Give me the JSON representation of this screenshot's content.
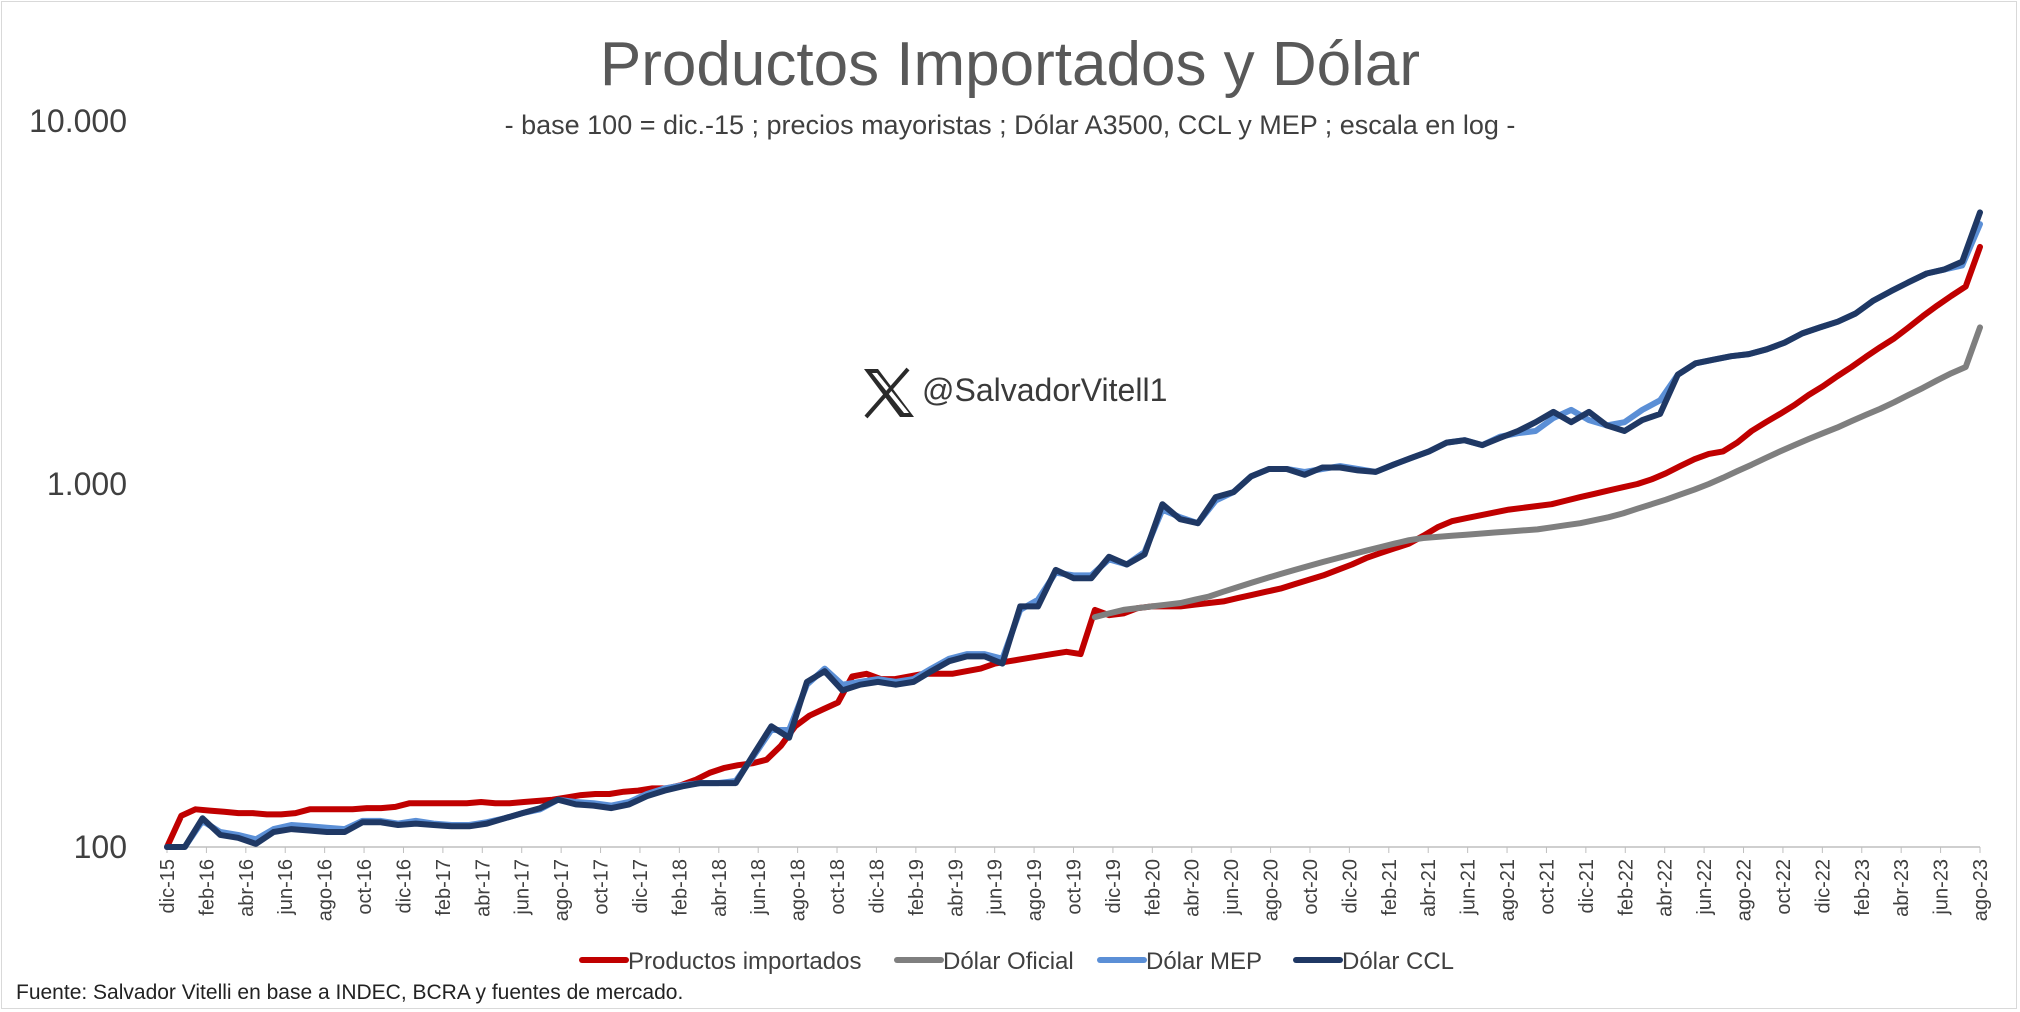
{
  "chart_data": {
    "type": "line",
    "title": "Productos Importados y Dólar",
    "subtitle": "- base 100 = dic.-15 ; precios mayoristas ; Dólar A3500, CCL y MEP ; escala en log -",
    "y_scale": "log",
    "ylim": [
      100,
      10000
    ],
    "yticks": [
      {
        "value": 100,
        "label": "100"
      },
      {
        "value": 1000,
        "label": "1.000"
      },
      {
        "value": 10000,
        "label": "10.000"
      }
    ],
    "x_ticks": [
      "dic-15",
      "feb-16",
      "abr-16",
      "jun-16",
      "ago-16",
      "oct-16",
      "dic-16",
      "feb-17",
      "abr-17",
      "jun-17",
      "ago-17",
      "oct-17",
      "dic-17",
      "feb-18",
      "abr-18",
      "jun-18",
      "ago-18",
      "oct-18",
      "dic-18",
      "feb-19",
      "abr-19",
      "jun-19",
      "ago-19",
      "oct-19",
      "dic-19",
      "feb-20",
      "abr-20",
      "jun-20",
      "ago-20",
      "oct-20",
      "dic-20",
      "feb-21",
      "abr-21",
      "jun-21",
      "ago-21",
      "oct-21",
      "dic-21",
      "feb-22",
      "abr-22",
      "jun-22",
      "ago-22",
      "oct-22",
      "dic-22",
      "feb-23",
      "abr-23",
      "jun-23",
      "ago-23"
    ],
    "series": [
      {
        "name": "Productos importados",
        "color": "#c00000",
        "values": [
          100,
          122,
          127,
          126,
          125,
          124,
          124,
          123,
          123,
          124,
          127,
          127,
          127,
          127,
          128,
          128,
          129,
          132,
          132,
          132,
          132,
          132,
          133,
          132,
          132,
          133,
          134,
          135,
          137,
          139,
          140,
          140,
          142,
          143,
          145,
          145,
          148,
          153,
          160,
          165,
          168,
          170,
          174,
          190,
          215,
          230,
          240,
          250,
          295,
          300,
          290,
          290,
          295,
          300,
          300,
          300,
          305,
          310,
          320,
          325,
          330,
          335,
          340,
          345,
          340,
          450,
          435,
          440,
          455,
          460,
          460,
          460,
          465,
          470,
          475,
          485,
          495,
          505,
          515,
          530,
          545,
          560,
          580,
          600,
          625,
          645,
          665,
          685,
          720,
          760,
          790,
          805,
          820,
          835,
          850,
          860,
          870,
          880,
          900,
          920,
          940,
          960,
          980,
          1000,
          1030,
          1070,
          1120,
          1170,
          1210,
          1230,
          1300,
          1400,
          1480,
          1560,
          1650,
          1760,
          1860,
          1980,
          2100,
          2240,
          2380,
          2520,
          2700,
          2900,
          3100,
          3300,
          3500,
          4500
        ]
      },
      {
        "name": "Dólar Oficial",
        "color": "#7f7f7f",
        "values": [
          null,
          null,
          null,
          null,
          null,
          null,
          null,
          null,
          null,
          null,
          null,
          null,
          null,
          null,
          null,
          null,
          null,
          null,
          null,
          null,
          null,
          null,
          null,
          null,
          null,
          null,
          null,
          null,
          null,
          null,
          null,
          null,
          null,
          null,
          null,
          null,
          null,
          null,
          null,
          null,
          null,
          null,
          null,
          null,
          null,
          null,
          null,
          null,
          null,
          null,
          null,
          null,
          null,
          null,
          null,
          null,
          null,
          null,
          null,
          null,
          null,
          null,
          null,
          null,
          null,
          430,
          440,
          450,
          455,
          460,
          465,
          470,
          480,
          490,
          505,
          520,
          535,
          550,
          565,
          580,
          595,
          610,
          625,
          640,
          655,
          670,
          685,
          700,
          710,
          715,
          720,
          725,
          730,
          735,
          740,
          745,
          750,
          760,
          770,
          780,
          795,
          810,
          830,
          855,
          880,
          905,
          935,
          965,
          1000,
          1040,
          1085,
          1130,
          1180,
          1230,
          1280,
          1330,
          1380,
          1430,
          1490,
          1550,
          1610,
          1680,
          1760,
          1840,
          1930,
          2020,
          2100,
          2700
        ]
      },
      {
        "name": "Dólar MEP",
        "color": "#5b8fd6",
        "values": [
          100,
          100,
          118,
          110,
          108,
          105,
          112,
          115,
          114,
          113,
          112,
          118,
          118,
          116,
          118,
          116,
          115,
          115,
          117,
          120,
          124,
          127,
          135,
          133,
          132,
          130,
          133,
          140,
          145,
          148,
          150,
          150,
          152,
          178,
          210,
          210,
          280,
          310,
          280,
          285,
          290,
          285,
          290,
          310,
          330,
          340,
          340,
          330,
          450,
          480,
          570,
          560,
          560,
          620,
          600,
          650,
          850,
          810,
          780,
          900,
          950,
          1050,
          1100,
          1100,
          1080,
          1100,
          1120,
          1100,
          1080,
          1130,
          1180,
          1230,
          1300,
          1320,
          1280,
          1350,
          1380,
          1400,
          1520,
          1600,
          1500,
          1450,
          1480,
          1600,
          1700,
          2000,
          2150,
          2200,
          2250,
          2280,
          2350,
          2450,
          2600,
          2700,
          2800,
          2950,
          3200,
          3400,
          3600,
          3800,
          3900,
          4000,
          5200
        ]
      },
      {
        "name": "Dólar CCL",
        "color": "#1f3864",
        "values": [
          100,
          100,
          120,
          108,
          106,
          102,
          110,
          112,
          111,
          110,
          110,
          117,
          117,
          115,
          116,
          115,
          114,
          114,
          116,
          120,
          124,
          128,
          135,
          131,
          130,
          128,
          131,
          138,
          143,
          147,
          150,
          150,
          150,
          180,
          215,
          200,
          285,
          305,
          270,
          280,
          285,
          280,
          285,
          305,
          325,
          335,
          335,
          320,
          460,
          460,
          580,
          550,
          550,
          630,
          600,
          640,
          880,
          800,
          780,
          920,
          950,
          1050,
          1100,
          1100,
          1060,
          1110,
          1110,
          1090,
          1080,
          1130,
          1180,
          1230,
          1300,
          1320,
          1280,
          1340,
          1400,
          1480,
          1580,
          1480,
          1580,
          1450,
          1400,
          1500,
          1560,
          2000,
          2150,
          2200,
          2250,
          2280,
          2350,
          2450,
          2600,
          2700,
          2800,
          2950,
          3200,
          3400,
          3600,
          3800,
          3900,
          4100,
          5600
        ]
      }
    ],
    "legend_position": "bottom",
    "grid": false,
    "watermark": "@SalvadorVitell1",
    "source": "Fuente: Salvador Vitelli en base a INDEC, BCRA y fuentes de mercado."
  }
}
